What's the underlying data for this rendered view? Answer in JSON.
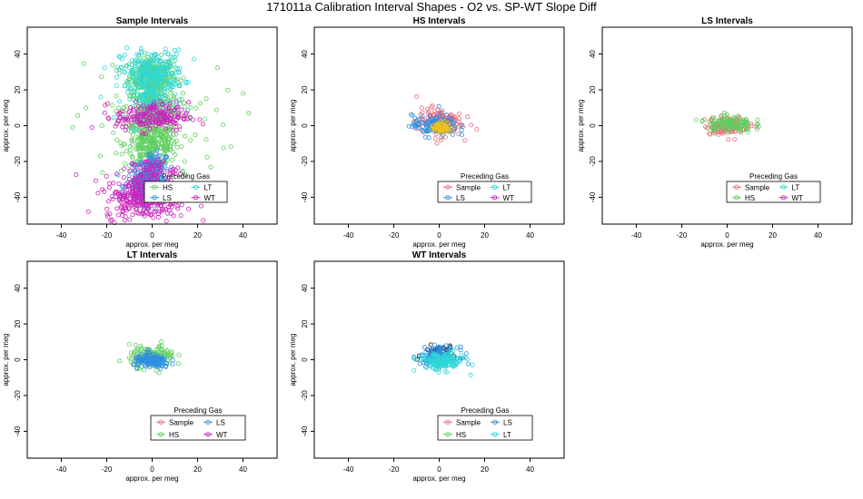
{
  "figure": {
    "title": "171011a   Calibration Interval Shapes - O2 vs. SP-WT Slope Diff"
  },
  "colors": {
    "Sample": "#ef6a7a",
    "HS": "#5fcf5f",
    "LS": "#2f8fe0",
    "LT": "#2fd8d8",
    "WT": "#cc22bb",
    "Sample_center": "#f2c21a",
    "WT_center": "#0a0a0a"
  },
  "chart_data": [
    {
      "type": "scatter",
      "title": "Sample Intervals",
      "xlabel": "approx. per meg",
      "ylabel": "approx. per meg",
      "xlim": [
        -55,
        55
      ],
      "ylim": [
        -55,
        55
      ],
      "xticks": [
        -40,
        -20,
        0,
        20,
        40
      ],
      "yticks": [
        -40,
        -20,
        0,
        20,
        40
      ],
      "grid": false,
      "legend": {
        "title": "Preceding Gas",
        "placement": "bottom-center",
        "entries": [
          "HS",
          "LT",
          "LS",
          "WT"
        ]
      },
      "series": [
        {
          "name": "HS",
          "clusters": [
            {
              "cx": 0,
              "cy": 28,
              "sx": 5,
              "sy": 5,
              "n": 260
            },
            {
              "cx": 0,
              "cy": -10,
              "sx": 6,
              "sy": 6,
              "n": 300
            },
            {
              "cx": 0,
              "cy": 10,
              "sx": 6,
              "sy": 6,
              "n": 200
            },
            {
              "cx": 0,
              "cy": 0,
              "sx": 18,
              "sy": 18,
              "n": 60
            }
          ]
        },
        {
          "name": "LT",
          "clusters": [
            {
              "cx": 0,
              "cy": 30,
              "sx": 7,
              "sy": 6,
              "n": 220
            },
            {
              "cx": 0,
              "cy": 15,
              "sx": 6,
              "sy": 6,
              "n": 120
            },
            {
              "cx": -3,
              "cy": -30,
              "sx": 3,
              "sy": 4,
              "n": 60
            }
          ]
        },
        {
          "name": "LS",
          "clusters": [
            {
              "cx": -3,
              "cy": -34,
              "sx": 4,
              "sy": 5,
              "n": 220
            },
            {
              "cx": 0,
              "cy": -22,
              "sx": 3,
              "sy": 4,
              "n": 80
            }
          ]
        },
        {
          "name": "WT",
          "clusters": [
            {
              "cx": 0,
              "cy": 5,
              "sx": 8,
              "sy": 4,
              "n": 200
            },
            {
              "cx": -3,
              "cy": -40,
              "sx": 9,
              "sy": 6,
              "n": 320
            },
            {
              "cx": 0,
              "cy": -25,
              "sx": 5,
              "sy": 3,
              "n": 60
            }
          ]
        }
      ]
    },
    {
      "type": "scatter",
      "title": "HS Intervals",
      "xlabel": "approx. per meg",
      "ylabel": "approx. per meg",
      "xlim": [
        -55,
        55
      ],
      "ylim": [
        -55,
        55
      ],
      "xticks": [
        -40,
        -20,
        0,
        20,
        40
      ],
      "yticks": [
        -40,
        -20,
        0,
        20,
        40
      ],
      "grid": false,
      "legend": {
        "title": "Preceding Gas",
        "placement": "bottom-center",
        "entries": [
          "Sample",
          "LT",
          "LS",
          "WT"
        ]
      },
      "series": [
        {
          "name": "Sample",
          "clusters": [
            {
              "cx": 0,
              "cy": 2,
              "sx": 5,
              "sy": 4,
              "n": 150
            }
          ]
        },
        {
          "name": "LS",
          "clusters": [
            {
              "cx": -2,
              "cy": 0,
              "sx": 5,
              "sy": 3,
              "n": 120
            }
          ]
        },
        {
          "name": "Sample_center",
          "clusters": [
            {
              "cx": 1,
              "cy": -1,
              "sx": 2,
              "sy": 1.5,
              "n": 60
            }
          ]
        }
      ]
    },
    {
      "type": "scatter",
      "title": "LS Intervals",
      "xlabel": "approx. per meg",
      "ylabel": "approx. per meg",
      "xlim": [
        -55,
        55
      ],
      "ylim": [
        -55,
        55
      ],
      "xticks": [
        -40,
        -20,
        0,
        20,
        40
      ],
      "yticks": [
        -40,
        -20,
        0,
        20,
        40
      ],
      "grid": false,
      "legend": {
        "title": "Preceding Gas",
        "placement": "bottom-center",
        "entries": [
          "Sample",
          "LT",
          "HS",
          "WT"
        ]
      },
      "series": [
        {
          "name": "Sample",
          "clusters": [
            {
              "cx": 0,
              "cy": 0,
              "sx": 5,
              "sy": 2.5,
              "n": 120
            }
          ]
        },
        {
          "name": "HS",
          "clusters": [
            {
              "cx": 1,
              "cy": 1,
              "sx": 5,
              "sy": 2.5,
              "n": 120
            }
          ]
        }
      ]
    },
    {
      "type": "scatter",
      "title": "LT Intervals",
      "xlabel": "approx. per meg",
      "ylabel": "approx. per meg",
      "xlim": [
        -55,
        55
      ],
      "ylim": [
        -55,
        55
      ],
      "xticks": [
        -40,
        -20,
        0,
        20,
        40
      ],
      "yticks": [
        -40,
        -20,
        0,
        20,
        40
      ],
      "grid": false,
      "legend": {
        "title": "Preceding Gas",
        "placement": "bottom-center",
        "entries": [
          "Sample",
          "LS",
          "HS",
          "WT"
        ]
      },
      "series": [
        {
          "name": "HS",
          "clusters": [
            {
              "cx": 0,
              "cy": 2,
              "sx": 5,
              "sy": 3,
              "n": 130
            }
          ]
        },
        {
          "name": "LS",
          "clusters": [
            {
              "cx": 0,
              "cy": -1,
              "sx": 4,
              "sy": 2,
              "n": 140
            }
          ]
        }
      ]
    },
    {
      "type": "scatter",
      "title": "WT Intervals",
      "xlabel": "approx. per meg",
      "ylabel": "approx. per meg",
      "xlim": [
        -55,
        55
      ],
      "ylim": [
        -55,
        55
      ],
      "xticks": [
        -40,
        -20,
        0,
        20,
        40
      ],
      "yticks": [
        -40,
        -20,
        0,
        20,
        40
      ],
      "grid": false,
      "legend": {
        "title": "Preceding Gas",
        "placement": "bottom-center",
        "entries": [
          "Sample",
          "LS",
          "HS",
          "LT"
        ]
      },
      "series": [
        {
          "name": "WT_center",
          "clusters": [
            {
              "cx": 0,
              "cy": 3,
              "sx": 3.5,
              "sy": 2.5,
              "n": 60
            }
          ]
        },
        {
          "name": "LS",
          "clusters": [
            {
              "cx": 0,
              "cy": 2,
              "sx": 4,
              "sy": 2.5,
              "n": 130
            }
          ]
        },
        {
          "name": "LT",
          "clusters": [
            {
              "cx": 1,
              "cy": -1,
              "sx": 5,
              "sy": 2.5,
              "n": 140
            }
          ]
        }
      ]
    }
  ]
}
